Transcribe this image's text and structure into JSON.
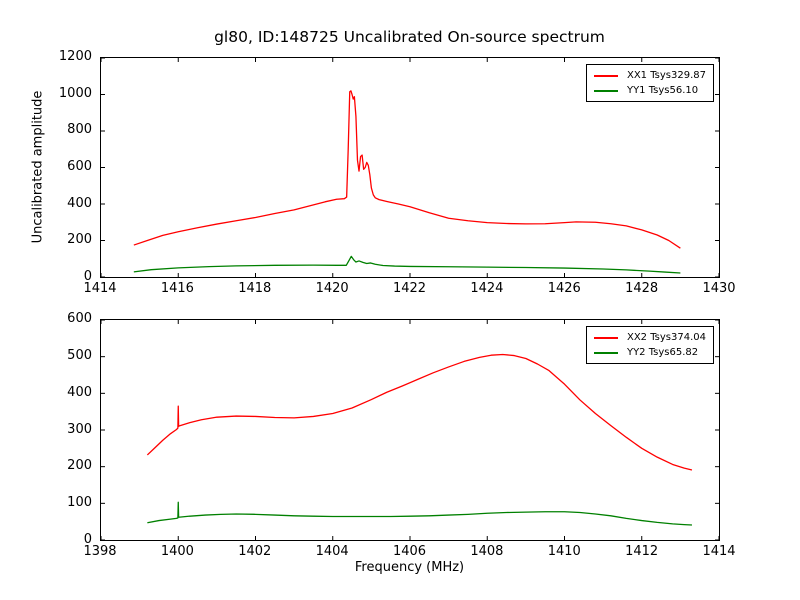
{
  "figure": {
    "title": "gl80, ID:148725 Uncalibrated On-source spectrum",
    "ylabel": "Uncalibrated amplitude",
    "xlabel": "Frequency (MHz)",
    "background": "#ffffff",
    "line_colors": {
      "xx": "#ff0000",
      "yy": "#008000"
    }
  },
  "chart_data": [
    {
      "type": "line",
      "subplot": "top",
      "xlim": [
        1414,
        1430
      ],
      "ylim": [
        0,
        1200
      ],
      "xticks": [
        "1414",
        "1416",
        "1418",
        "1420",
        "1422",
        "1424",
        "1426",
        "1428",
        "1430"
      ],
      "yticks": [
        "0",
        "200",
        "400",
        "600",
        "800",
        "1000",
        "1200"
      ],
      "grid": false,
      "legend": {
        "position": "upper right",
        "entries": [
          {
            "label": "XX1 Tsys329.87",
            "color": "#ff0000"
          },
          {
            "label": "YY1 Tsys56.10",
            "color": "#008000"
          }
        ]
      },
      "series": [
        {
          "name": "XX1",
          "color": "#ff0000",
          "x": [
            1414.85,
            1415.2,
            1415.6,
            1416.0,
            1416.5,
            1417.0,
            1417.5,
            1418.0,
            1418.5,
            1419.0,
            1419.5,
            1419.8,
            1420.1,
            1420.3,
            1420.36,
            1420.4,
            1420.44,
            1420.47,
            1420.5,
            1420.53,
            1420.56,
            1420.6,
            1420.64,
            1420.68,
            1420.72,
            1420.76,
            1420.8,
            1420.84,
            1420.88,
            1420.92,
            1420.96,
            1421.0,
            1421.05,
            1421.1,
            1421.2,
            1421.4,
            1421.7,
            1422.0,
            1422.5,
            1423.0,
            1423.5,
            1424.0,
            1424.5,
            1425.0,
            1425.5,
            1426.0,
            1426.3,
            1426.8,
            1427.2,
            1427.6,
            1428.0,
            1428.4,
            1428.7,
            1429.0
          ],
          "y": [
            175,
            200,
            228,
            248,
            270,
            290,
            308,
            326,
            348,
            368,
            395,
            412,
            426,
            429,
            438,
            700,
            1015,
            1020,
            1000,
            975,
            988,
            880,
            640,
            580,
            660,
            668,
            590,
            600,
            628,
            612,
            560,
            488,
            450,
            434,
            424,
            414,
            400,
            385,
            352,
            322,
            308,
            298,
            293,
            291,
            292,
            298,
            302,
            300,
            292,
            280,
            258,
            230,
            200,
            158
          ]
        },
        {
          "name": "YY1",
          "color": "#008000",
          "x": [
            1414.85,
            1415.3,
            1416.0,
            1416.8,
            1417.5,
            1418.5,
            1419.5,
            1420.1,
            1420.35,
            1420.42,
            1420.48,
            1420.54,
            1420.6,
            1420.68,
            1420.78,
            1420.88,
            1420.98,
            1421.1,
            1421.3,
            1421.6,
            1422.0,
            1423.0,
            1424.0,
            1425.0,
            1426.0,
            1427.0,
            1427.6,
            1428.2,
            1428.6,
            1429.0
          ],
          "y": [
            28,
            40,
            50,
            57,
            61,
            64,
            65,
            64,
            64,
            90,
            113,
            95,
            82,
            88,
            80,
            74,
            77,
            70,
            63,
            60,
            58,
            56,
            54,
            52,
            49,
            44,
            39,
            32,
            27,
            22
          ]
        }
      ]
    },
    {
      "type": "line",
      "subplot": "bottom",
      "xlim": [
        1398,
        1414
      ],
      "ylim": [
        0,
        600
      ],
      "xticks": [
        "1398",
        "1400",
        "1402",
        "1404",
        "1406",
        "1408",
        "1410",
        "1412",
        "1414"
      ],
      "yticks": [
        "0",
        "100",
        "200",
        "300",
        "400",
        "500",
        "600"
      ],
      "grid": false,
      "legend": {
        "position": "upper right",
        "entries": [
          {
            "label": "XX2 Tsys374.04",
            "color": "#ff0000"
          },
          {
            "label": "YY2 Tsys65.82",
            "color": "#008000"
          }
        ]
      },
      "series": [
        {
          "name": "XX2",
          "color": "#ff0000",
          "x": [
            1399.2,
            1399.4,
            1399.6,
            1399.8,
            1399.95,
            1399.99,
            1400.0,
            1400.01,
            1400.05,
            1400.3,
            1400.6,
            1401.0,
            1401.5,
            1402.0,
            1402.5,
            1403.0,
            1403.5,
            1404.0,
            1404.5,
            1405.0,
            1405.4,
            1405.8,
            1406.2,
            1406.6,
            1407.0,
            1407.4,
            1407.8,
            1408.1,
            1408.4,
            1408.7,
            1409.0,
            1409.3,
            1409.6,
            1410.0,
            1410.4,
            1410.8,
            1411.2,
            1411.6,
            1412.0,
            1412.4,
            1412.8,
            1413.1,
            1413.3
          ],
          "y": [
            232,
            252,
            272,
            290,
            301,
            305,
            365,
            310,
            312,
            320,
            328,
            335,
            338,
            337,
            334,
            333,
            337,
            345,
            360,
            383,
            403,
            420,
            438,
            456,
            472,
            487,
            498,
            504,
            506,
            503,
            495,
            480,
            462,
            425,
            382,
            345,
            312,
            280,
            250,
            226,
            206,
            196,
            191
          ]
        },
        {
          "name": "YY2",
          "color": "#008000",
          "x": [
            1399.2,
            1399.5,
            1399.8,
            1399.95,
            1399.99,
            1400.0,
            1400.01,
            1400.3,
            1400.7,
            1401.1,
            1401.5,
            1402.0,
            1402.5,
            1403.0,
            1403.5,
            1404.0,
            1404.5,
            1405.0,
            1405.5,
            1406.0,
            1406.5,
            1407.0,
            1407.5,
            1408.0,
            1408.5,
            1409.0,
            1409.5,
            1410.0,
            1410.4,
            1410.8,
            1411.2,
            1411.6,
            1412.0,
            1412.4,
            1412.8,
            1413.1,
            1413.3
          ],
          "y": [
            47,
            53,
            57,
            59,
            60,
            103,
            62,
            65,
            68,
            70,
            71,
            70,
            68,
            66,
            65,
            64,
            64,
            64,
            64,
            65,
            66,
            68,
            70,
            73,
            75,
            76,
            77,
            77,
            75,
            71,
            66,
            59,
            53,
            48,
            44,
            42,
            41
          ]
        }
      ]
    }
  ]
}
